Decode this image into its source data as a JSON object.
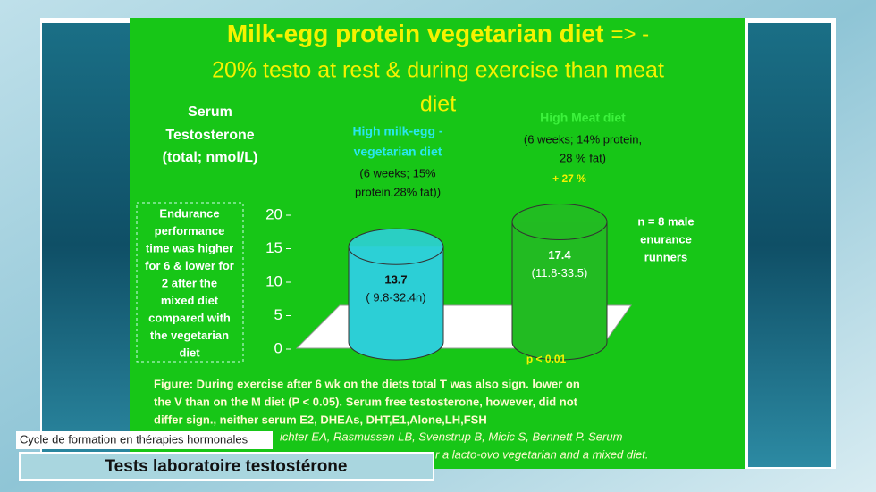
{
  "chart_data": {
    "type": "bar",
    "title_bold": "Milk-egg protein vegetarian diet",
    "title_lines": [
      "=> -",
      "20% testo at rest & during exercise than meat",
      "diet"
    ],
    "y_label_lines": [
      "Serum",
      "Testosterone",
      "(total; nmol/L)"
    ],
    "categories": [
      "High milk-egg - vegetarian diet",
      "High Meat  diet"
    ],
    "category_name_lines": [
      [
        "High milk-egg -",
        "vegetarian diet"
      ],
      [
        "High Meat  diet"
      ]
    ],
    "category_detail_lines": [
      [
        "(6 weeks; 15%",
        "protein,28% fat))"
      ],
      [
        "(6 weeks; 14% protein,",
        "28 % fat)"
      ]
    ],
    "values": [
      13.7,
      17.4
    ],
    "value_ranges": [
      "( 9.8-32.4n)",
      "(11.8-33.5)"
    ],
    "colors": [
      "#2ccfd6",
      "#22bb22"
    ],
    "ylim": [
      0,
      20
    ],
    "yticks": [
      0,
      5,
      10,
      15,
      20
    ],
    "difference_label": "+ 27 %",
    "p_value": "p < 0.01",
    "sample_lines": [
      "n = 8 male",
      "enurance",
      "runners"
    ],
    "side_note_lines": [
      "Endurance",
      "performance",
      "time was higher",
      "for 6 & lower for",
      "2 after the",
      "mixed diet",
      "compared with",
      "the vegetarian",
      "diet"
    ],
    "figure_caption_lines": [
      "Figure: During exercise after 6 wk on the diets total T was also sign. lower on",
      "the V than on the M diet (P < 0.05). Serum free testosterone, however, did not",
      "differ sign., neither serum E2, DHEAs, DHT,E1,Alone,LH,FSH"
    ],
    "citation_lines": [
      "ichter EA, Rasmussen LB, Svenstrup B, Micic S, Bennett P. Serum",
      "r a lacto-ovo vegetarian and a mixed diet."
    ]
  },
  "overlay": {
    "course": "Cycle de formation en thérapies hormonales",
    "lesson": "Tests laboratoire testostérone"
  }
}
